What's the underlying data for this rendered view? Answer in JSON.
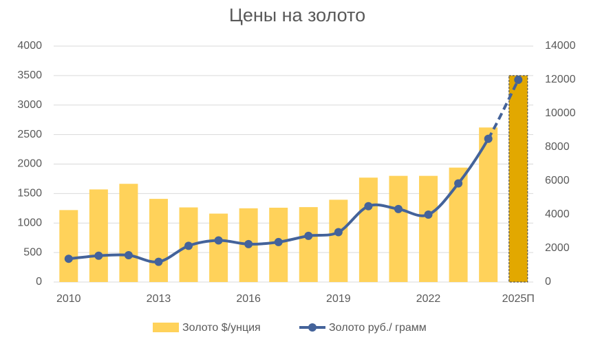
{
  "chart_data": {
    "type": "bar-line",
    "title": "Цены на золото",
    "categories": [
      "2010",
      null,
      null,
      "2013",
      null,
      null,
      "2016",
      null,
      null,
      "2019",
      null,
      null,
      "2022",
      null,
      null,
      "2025П"
    ],
    "series": [
      {
        "name": "Золото $/унция",
        "type": "bar",
        "color": "#ffd25a",
        "colors": [
          "#ffd25a",
          "#ffd25a",
          "#ffd25a",
          "#ffd25a",
          "#ffd25a",
          "#ffd25a",
          "#ffd25a",
          "#ffd25a",
          "#ffd25a",
          "#ffd25a",
          "#ffd25a",
          "#ffd25a",
          "#ffd25a",
          "#ffd25a",
          "#ffd25a",
          "#e2a800"
        ],
        "values": [
          1220,
          1570,
          1665,
          1410,
          1265,
          1160,
          1250,
          1260,
          1270,
          1395,
          1770,
          1800,
          1800,
          1940,
          2620,
          3500
        ]
      },
      {
        "name": "Золото руб./ грамм",
        "type": "line",
        "axis": "y2",
        "color": "#44639a",
        "styles": [
          "solid",
          "solid",
          "solid",
          "solid",
          "solid",
          "solid",
          "solid",
          "solid",
          "solid",
          "solid",
          "solid",
          "solid",
          "solid",
          "solid",
          "solid",
          "dashed"
        ],
        "values": [
          1380,
          1560,
          1590,
          1200,
          2150,
          2470,
          2250,
          2370,
          2740,
          2960,
          4500,
          4330,
          4000,
          5850,
          8500,
          12000
        ]
      }
    ],
    "ylim": [
      0,
      4000
    ],
    "yticks": [
      0,
      500,
      1000,
      1500,
      2000,
      2500,
      3000,
      3500,
      4000
    ],
    "y2lim": [
      0,
      14000
    ],
    "y2ticks": [
      0,
      2000,
      4000,
      6000,
      8000,
      10000,
      12000,
      14000
    ],
    "grid": true,
    "legend": "bottom"
  }
}
